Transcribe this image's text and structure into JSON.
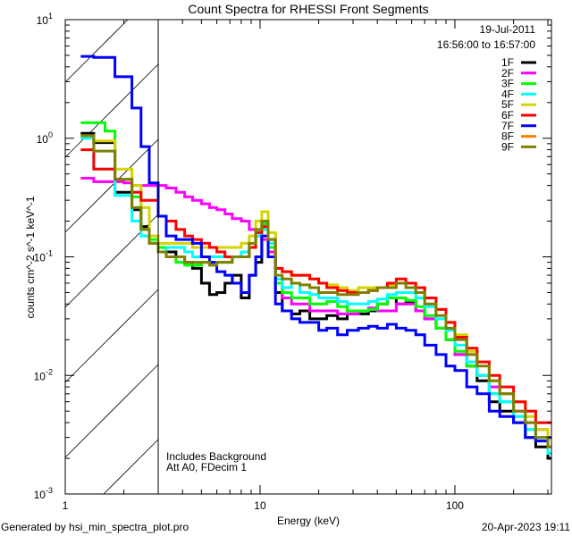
{
  "chart_data": {
    "type": "line",
    "title": "Count Spectra for RHESSI Front Segments",
    "xlabel": "Energy (keV)",
    "ylabel": "counts cm^-2 s^-1 keV^-1",
    "ylabel_parts": {
      "a": "counts cm",
      "e1": "-2",
      "b": " s",
      "e2": "-1",
      "c": " keV",
      "e3": "-1"
    },
    "xscale": "log",
    "yscale": "log",
    "xlim": [
      1,
      313
    ],
    "ylim": [
      0.001,
      10
    ],
    "x_tick_labels": [
      "1",
      "10",
      "100"
    ],
    "y_tick_labels": [
      {
        "base": "10",
        "exp": "1"
      },
      {
        "base": "10",
        "exp": "0"
      },
      {
        "base": "10",
        "exp": "-1"
      },
      {
        "base": "10",
        "exp": "-2"
      },
      {
        "base": "10",
        "exp": "-3"
      }
    ],
    "shaded_region": {
      "x": [
        1,
        3
      ],
      "style": "hatched"
    },
    "legend_position": "top-right",
    "date": "19-Jul-2011",
    "time_range": "16:56:00 to 16:57:00",
    "annotations": [
      "Includes Background",
      "Att A0, FDecim 1"
    ],
    "x": [
      1.2,
      1.4,
      1.6,
      1.8,
      2.0,
      2.2,
      2.45,
      2.7,
      3.0,
      3.3,
      3.7,
      4.1,
      4.5,
      5.0,
      5.5,
      6.0,
      6.6,
      7.2,
      8.0,
      8.8,
      9.5,
      10.2,
      11,
      12,
      13,
      14.5,
      16,
      18,
      20,
      22,
      25,
      28,
      32,
      36,
      40,
      45,
      50,
      56,
      63,
      70,
      80,
      90,
      100,
      115,
      130,
      150,
      170,
      200,
      230,
      260,
      300
    ],
    "series": [
      {
        "name": "1F",
        "color": "#000000",
        "values": [
          1.1,
          0.92,
          0.92,
          0.35,
          0.35,
          0.25,
          0.18,
          0.13,
          0.12,
          0.11,
          0.1,
          0.09,
          0.08,
          0.06,
          0.048,
          0.05,
          0.06,
          0.07,
          0.045,
          0.07,
          0.09,
          0.17,
          0.1,
          0.05,
          0.035,
          0.033,
          0.035,
          0.03,
          0.03,
          0.032,
          0.03,
          0.033,
          0.033,
          0.035,
          0.04,
          0.045,
          0.04,
          0.042,
          0.035,
          0.03,
          0.025,
          0.02,
          0.015,
          0.012,
          0.009,
          0.006,
          0.005,
          0.004,
          0.003,
          0.0025,
          0.002
        ]
      },
      {
        "name": "2F",
        "color": "#ff00ff",
        "values": [
          0.46,
          0.43,
          0.43,
          0.43,
          0.42,
          0.4,
          0.4,
          0.4,
          0.4,
          0.38,
          0.35,
          0.32,
          0.3,
          0.28,
          0.26,
          0.25,
          0.23,
          0.21,
          0.2,
          0.17,
          0.15,
          0.14,
          0.11,
          0.06,
          0.045,
          0.04,
          0.04,
          0.035,
          0.035,
          0.035,
          0.033,
          0.033,
          0.035,
          0.037,
          0.035,
          0.035,
          0.04,
          0.04,
          0.035,
          0.03,
          0.025,
          0.02,
          0.015,
          0.012,
          0.01,
          0.008,
          0.007,
          0.005,
          0.004,
          0.0035,
          0.003
        ]
      },
      {
        "name": "3F",
        "color": "#00ff00",
        "values": [
          1.35,
          1.35,
          1.15,
          0.45,
          0.45,
          0.32,
          0.17,
          0.14,
          0.12,
          0.1,
          0.09,
          0.085,
          0.085,
          0.09,
          0.09,
          0.09,
          0.09,
          0.1,
          0.1,
          0.12,
          0.16,
          0.19,
          0.12,
          0.06,
          0.05,
          0.045,
          0.045,
          0.04,
          0.04,
          0.042,
          0.038,
          0.035,
          0.035,
          0.036,
          0.04,
          0.045,
          0.045,
          0.043,
          0.038,
          0.032,
          0.025,
          0.02,
          0.016,
          0.012,
          0.01,
          0.007,
          0.006,
          0.0045,
          0.0035,
          0.003,
          0.003
        ]
      },
      {
        "name": "4F",
        "color": "#00ffff",
        "values": [
          1.0,
          0.55,
          0.55,
          0.33,
          0.33,
          0.2,
          0.15,
          0.13,
          0.11,
          0.12,
          0.12,
          0.11,
          0.1,
          0.1,
          0.1,
          0.1,
          0.1,
          0.1,
          0.11,
          0.12,
          0.15,
          0.17,
          0.13,
          0.065,
          0.055,
          0.06,
          0.05,
          0.048,
          0.045,
          0.045,
          0.042,
          0.04,
          0.04,
          0.042,
          0.044,
          0.048,
          0.05,
          0.05,
          0.045,
          0.038,
          0.03,
          0.024,
          0.018,
          0.013,
          0.01,
          0.007,
          0.006,
          0.0045,
          0.0035,
          0.003,
          0.0022
        ]
      },
      {
        "name": "5F",
        "color": "#d4d400",
        "values": [
          1.05,
          0.95,
          0.95,
          0.55,
          0.55,
          0.4,
          0.26,
          0.15,
          0.13,
          0.13,
          0.13,
          0.13,
          0.12,
          0.12,
          0.12,
          0.12,
          0.12,
          0.12,
          0.13,
          0.15,
          0.2,
          0.24,
          0.16,
          0.08,
          0.075,
          0.07,
          0.07,
          0.065,
          0.06,
          0.058,
          0.055,
          0.052,
          0.055,
          0.055,
          0.055,
          0.058,
          0.06,
          0.06,
          0.055,
          0.045,
          0.036,
          0.028,
          0.022,
          0.016,
          0.013,
          0.009,
          0.007,
          0.006,
          0.0045,
          0.0035,
          0.003
        ]
      },
      {
        "name": "6F",
        "color": "#ff0000",
        "values": [
          0.8,
          0.55,
          0.55,
          0.45,
          0.45,
          0.35,
          0.3,
          0.3,
          0.22,
          0.2,
          0.17,
          0.15,
          0.14,
          0.13,
          0.12,
          0.11,
          0.1,
          0.1,
          0.1,
          0.12,
          0.16,
          0.18,
          0.14,
          0.08,
          0.075,
          0.07,
          0.07,
          0.065,
          0.06,
          0.055,
          0.052,
          0.05,
          0.05,
          0.052,
          0.055,
          0.06,
          0.065,
          0.06,
          0.055,
          0.045,
          0.036,
          0.028,
          0.021,
          0.017,
          0.013,
          0.01,
          0.008,
          0.006,
          0.005,
          0.004,
          0.004
        ]
      },
      {
        "name": "7F",
        "color": "#0000ff",
        "values": [
          4.9,
          4.8,
          4.8,
          3.3,
          3.3,
          1.8,
          0.85,
          0.42,
          0.22,
          0.15,
          0.14,
          0.14,
          0.13,
          0.1,
          0.09,
          0.075,
          0.07,
          0.06,
          0.05,
          0.07,
          0.1,
          0.15,
          0.1,
          0.04,
          0.035,
          0.03,
          0.028,
          0.028,
          0.024,
          0.025,
          0.022,
          0.024,
          0.025,
          0.026,
          0.025,
          0.027,
          0.025,
          0.024,
          0.022,
          0.018,
          0.015,
          0.012,
          0.011,
          0.008,
          0.007,
          0.005,
          0.0045,
          0.004,
          0.003,
          0.0028,
          0.003
        ]
      },
      {
        "name": "8F",
        "color": "#ff8000",
        "values": null
      },
      {
        "name": "9F",
        "color": "#808000",
        "values": [
          1.05,
          0.78,
          0.78,
          0.45,
          0.45,
          0.26,
          0.17,
          0.13,
          0.11,
          0.1,
          0.1,
          0.09,
          0.09,
          0.09,
          0.085,
          0.09,
          0.09,
          0.1,
          0.1,
          0.13,
          0.17,
          0.2,
          0.14,
          0.07,
          0.065,
          0.06,
          0.058,
          0.055,
          0.05,
          0.05,
          0.048,
          0.048,
          0.05,
          0.052,
          0.055,
          0.055,
          0.06,
          0.055,
          0.05,
          0.04,
          0.032,
          0.025,
          0.02,
          0.015,
          0.012,
          0.009,
          0.007,
          0.005,
          0.004,
          0.003,
          0.0025
        ]
      }
    ]
  },
  "footer": {
    "generated_by": "Generated by hsi_min_spectra_plot.pro",
    "timestamp": "20-Apr-2023 19:11"
  }
}
